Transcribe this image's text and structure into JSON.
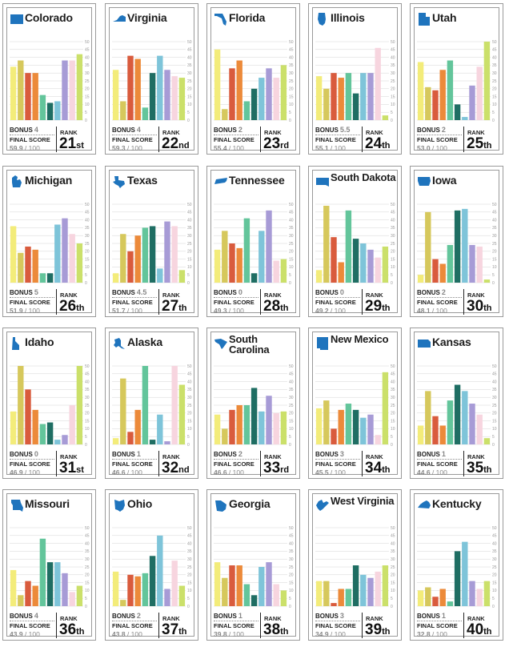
{
  "colors": [
    "#f3ec7a",
    "#d6c85c",
    "#d95b3d",
    "#ec8a3a",
    "#63c59b",
    "#1f6e63",
    "#7ec4d9",
    "#a79bd6",
    "#f7d5df",
    "#cbe06a"
  ],
  "labels": {
    "bonus": "BONUS",
    "final_score": "FINAL SCORE",
    "rank": "RANK",
    "score_max": "/ 100"
  },
  "chart_data": [
    {
      "type": "bar",
      "title": "Colorado",
      "icon": "colorado-icon",
      "bonus": "4",
      "final_score": "59.9",
      "rank": "21",
      "rank_suffix": "st",
      "ylim": [
        0,
        50
      ],
      "yticks": [
        0,
        5,
        10,
        15,
        20,
        25,
        30,
        35,
        40,
        45,
        50
      ],
      "values": [
        34,
        38,
        30,
        30,
        16,
        11,
        12,
        38,
        38,
        42
      ]
    },
    {
      "type": "bar",
      "title": "Virginia",
      "icon": "virginia-icon",
      "bonus": "4",
      "final_score": "59.3",
      "rank": "22",
      "rank_suffix": "nd",
      "ylim": [
        0,
        50
      ],
      "yticks": [
        0,
        5,
        10,
        15,
        20,
        25,
        30,
        35,
        40,
        45,
        50
      ],
      "values": [
        32,
        12,
        41,
        39,
        8,
        30,
        41,
        32,
        28,
        27
      ]
    },
    {
      "type": "bar",
      "title": "Florida",
      "icon": "florida-icon",
      "bonus": "2",
      "final_score": "55.4",
      "rank": "23",
      "rank_suffix": "rd",
      "ylim": [
        0,
        50
      ],
      "yticks": [
        0,
        5,
        10,
        15,
        20,
        25,
        30,
        35,
        40,
        45,
        50
      ],
      "values": [
        45,
        7,
        33,
        38,
        12,
        20,
        27,
        33,
        27,
        35
      ]
    },
    {
      "type": "bar",
      "title": "Illinois",
      "icon": "illinois-icon",
      "bonus": "5.5",
      "final_score": "55.1",
      "rank": "24",
      "rank_suffix": "th",
      "ylim": [
        0,
        50
      ],
      "yticks": [
        0,
        5,
        10,
        15,
        20,
        25,
        30,
        35,
        40,
        45,
        50
      ],
      "values": [
        28,
        20,
        30,
        27,
        30,
        17,
        30,
        30,
        46,
        3
      ]
    },
    {
      "type": "bar",
      "title": "Utah",
      "icon": "utah-icon",
      "bonus": "2",
      "final_score": "53.0",
      "rank": "25",
      "rank_suffix": "th",
      "ylim": [
        0,
        50
      ],
      "yticks": [
        0,
        5,
        10,
        15,
        20,
        25,
        30,
        35,
        40,
        45,
        50
      ],
      "values": [
        37,
        21,
        19,
        32,
        38,
        10,
        2,
        22,
        34,
        50
      ]
    },
    {
      "type": "bar",
      "title": "Michigan",
      "icon": "michigan-icon",
      "bonus": "5",
      "final_score": "51.9",
      "rank": "26",
      "rank_suffix": "th",
      "ylim": [
        0,
        50
      ],
      "yticks": [
        0,
        5,
        10,
        15,
        20,
        25,
        30,
        35,
        40,
        45,
        50
      ],
      "values": [
        36,
        19,
        23,
        21,
        6,
        6,
        37,
        41,
        31,
        25
      ]
    },
    {
      "type": "bar",
      "title": "Texas",
      "icon": "texas-icon",
      "bonus": "4.5",
      "final_score": "51.7",
      "rank": "27",
      "rank_suffix": "th",
      "ylim": [
        0,
        50
      ],
      "yticks": [
        0,
        5,
        10,
        15,
        20,
        25,
        30,
        35,
        40,
        45,
        50
      ],
      "values": [
        6,
        31,
        20,
        30,
        35,
        36,
        9,
        39,
        36,
        8
      ]
    },
    {
      "type": "bar",
      "title": "Tennessee",
      "icon": "tennessee-icon",
      "bonus": "0",
      "final_score": "49.3",
      "rank": "28",
      "rank_suffix": "th",
      "ylim": [
        0,
        50
      ],
      "yticks": [
        0,
        5,
        10,
        15,
        20,
        25,
        30,
        35,
        40,
        45,
        50
      ],
      "values": [
        21,
        33,
        25,
        22,
        41,
        6,
        33,
        46,
        14,
        15
      ]
    },
    {
      "type": "bar",
      "title": "South Dakota",
      "icon": "south-dakota-icon",
      "bonus": "0",
      "final_score": "49.2",
      "rank": "29",
      "rank_suffix": "th",
      "ylim": [
        0,
        50
      ],
      "yticks": [
        0,
        5,
        10,
        15,
        20,
        25,
        30,
        35,
        40,
        45,
        50
      ],
      "values": [
        8,
        49,
        29,
        13,
        46,
        28,
        25,
        21,
        16,
        23
      ]
    },
    {
      "type": "bar",
      "title": "Iowa",
      "icon": "iowa-icon",
      "bonus": "2",
      "final_score": "48.1",
      "rank": "30",
      "rank_suffix": "th",
      "ylim": [
        0,
        50
      ],
      "yticks": [
        0,
        5,
        10,
        15,
        20,
        25,
        30,
        35,
        40,
        45,
        50
      ],
      "values": [
        5,
        45,
        15,
        12,
        24,
        46,
        47,
        24,
        23,
        2
      ]
    },
    {
      "type": "bar",
      "title": "Idaho",
      "icon": "idaho-icon",
      "bonus": "0",
      "final_score": "46.9",
      "rank": "31",
      "rank_suffix": "st",
      "ylim": [
        0,
        50
      ],
      "yticks": [
        0,
        5,
        10,
        15,
        20,
        25,
        30,
        35,
        40,
        45,
        50
      ],
      "values": [
        21,
        50,
        35,
        22,
        13,
        14,
        3,
        6,
        25,
        50
      ]
    },
    {
      "type": "bar",
      "title": "Alaska",
      "icon": "alaska-icon",
      "bonus": "1",
      "final_score": "46.6",
      "rank": "32",
      "rank_suffix": "nd",
      "ylim": [
        0,
        50
      ],
      "yticks": [
        0,
        5,
        10,
        15,
        20,
        25,
        30,
        35,
        40,
        45,
        50
      ],
      "values": [
        4,
        42,
        8,
        22,
        50,
        3,
        19,
        2,
        50,
        38
      ]
    },
    {
      "type": "bar",
      "title": "South Carolina",
      "icon": "south-carolina-icon",
      "bonus": "2",
      "final_score": "46.6",
      "rank": "33",
      "rank_suffix": "rd",
      "ylim": [
        0,
        50
      ],
      "yticks": [
        0,
        5,
        10,
        15,
        20,
        25,
        30,
        35,
        40,
        45,
        50
      ],
      "values": [
        19,
        10,
        22,
        25,
        25,
        36,
        21,
        31,
        20,
        21
      ]
    },
    {
      "type": "bar",
      "title": "New Mexico",
      "icon": "new-mexico-icon",
      "bonus": "3",
      "final_score": "45.5",
      "rank": "34",
      "rank_suffix": "th",
      "ylim": [
        0,
        50
      ],
      "yticks": [
        0,
        5,
        10,
        15,
        20,
        25,
        30,
        35,
        40,
        45,
        50
      ],
      "values": [
        23,
        28,
        10,
        22,
        26,
        22,
        17,
        19,
        6,
        46
      ]
    },
    {
      "type": "bar",
      "title": "Kansas",
      "icon": "kansas-icon",
      "bonus": "1",
      "final_score": "44.6",
      "rank": "35",
      "rank_suffix": "th",
      "ylim": [
        0,
        50
      ],
      "yticks": [
        0,
        5,
        10,
        15,
        20,
        25,
        30,
        35,
        40,
        45,
        50
      ],
      "values": [
        12,
        34,
        18,
        12,
        28,
        38,
        34,
        26,
        19,
        4
      ]
    },
    {
      "type": "bar",
      "title": "Missouri",
      "icon": "missouri-icon",
      "bonus": "4",
      "final_score": "43.9",
      "rank": "36",
      "rank_suffix": "th",
      "ylim": [
        0,
        50
      ],
      "yticks": [
        0,
        5,
        10,
        15,
        20,
        25,
        30,
        35,
        40,
        45,
        50
      ],
      "values": [
        23,
        7,
        16,
        13,
        43,
        28,
        28,
        21,
        9,
        13
      ]
    },
    {
      "type": "bar",
      "title": "Ohio",
      "icon": "ohio-icon",
      "bonus": "2",
      "final_score": "43.8",
      "rank": "37",
      "rank_suffix": "th",
      "ylim": [
        0,
        50
      ],
      "yticks": [
        0,
        5,
        10,
        15,
        20,
        25,
        30,
        35,
        40,
        45,
        50
      ],
      "values": [
        22,
        4,
        20,
        19,
        21,
        32,
        45,
        11,
        29,
        13
      ]
    },
    {
      "type": "bar",
      "title": "Georgia",
      "icon": "georgia-icon",
      "bonus": "1",
      "final_score": "39.8",
      "rank": "38",
      "rank_suffix": "th",
      "ylim": [
        0,
        50
      ],
      "yticks": [
        0,
        5,
        10,
        15,
        20,
        25,
        30,
        35,
        40,
        45,
        50
      ],
      "values": [
        28,
        18,
        26,
        26,
        14,
        7,
        25,
        28,
        14,
        10
      ]
    },
    {
      "type": "bar",
      "title": "West Virginia",
      "icon": "west-virginia-icon",
      "bonus": "3",
      "final_score": "34.9",
      "rank": "39",
      "rank_suffix": "th",
      "ylim": [
        0,
        50
      ],
      "yticks": [
        0,
        5,
        10,
        15,
        20,
        25,
        30,
        35,
        40,
        45,
        50
      ],
      "values": [
        16,
        16,
        2,
        11,
        11,
        26,
        20,
        18,
        22,
        26
      ]
    },
    {
      "type": "bar",
      "title": "Kentucky",
      "icon": "kentucky-icon",
      "bonus": "1",
      "final_score": "32.8",
      "rank": "40",
      "rank_suffix": "th",
      "ylim": [
        0,
        50
      ],
      "yticks": [
        0,
        5,
        10,
        15,
        20,
        25,
        30,
        35,
        40,
        45,
        50
      ],
      "values": [
        10,
        12,
        6,
        11,
        3,
        35,
        41,
        16,
        11,
        16
      ]
    }
  ]
}
